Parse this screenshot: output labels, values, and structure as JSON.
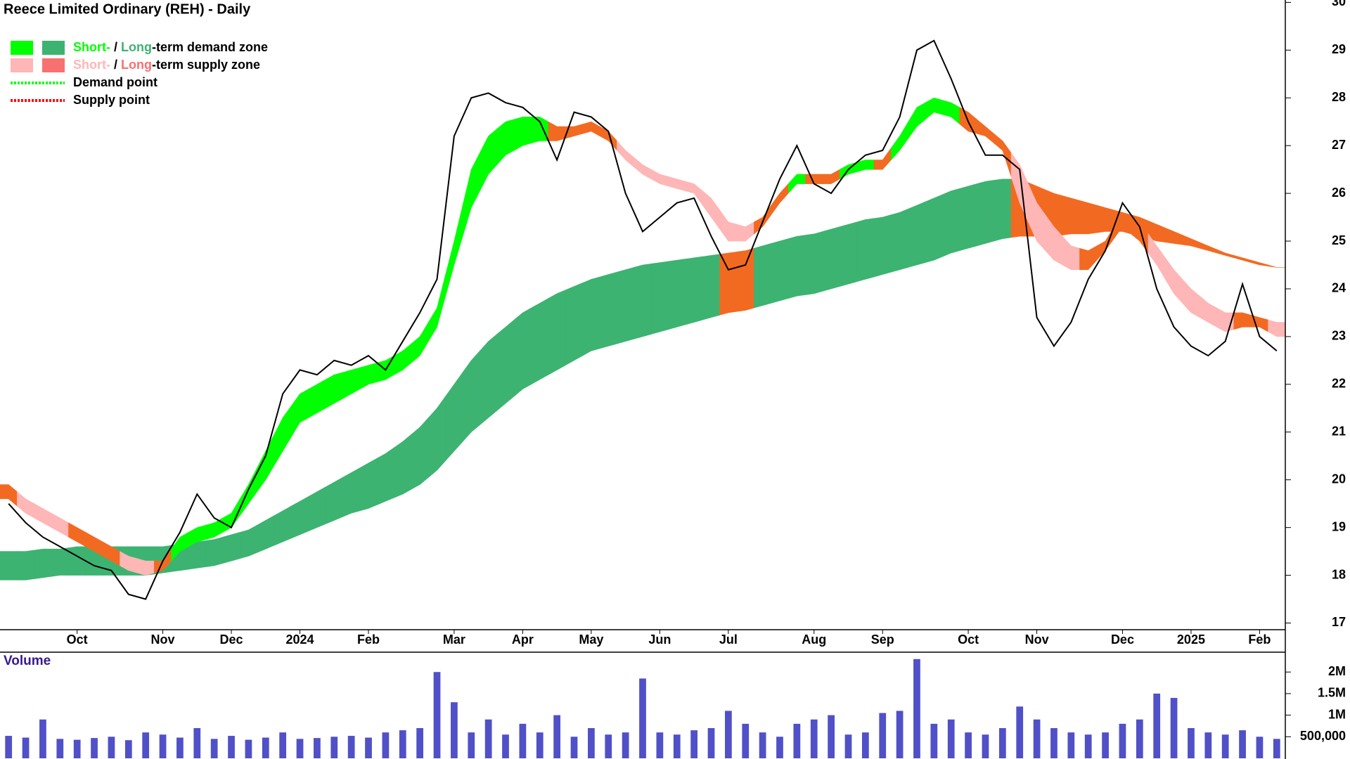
{
  "chart_data": [
    {
      "type": "line",
      "title": "Reece Limited Ordinary (REH) - Daily",
      "categories": [
        null,
        null,
        null,
        null,
        "Oct",
        null,
        null,
        null,
        null,
        "Nov",
        null,
        null,
        null,
        "Dec",
        null,
        null,
        null,
        "2024",
        null,
        null,
        null,
        "Feb",
        null,
        null,
        null,
        null,
        "Mar",
        null,
        null,
        null,
        "Apr",
        null,
        null,
        null,
        "May",
        null,
        null,
        null,
        "Jun",
        null,
        null,
        null,
        "Jul",
        null,
        null,
        null,
        null,
        "Aug",
        null,
        null,
        null,
        "Sep",
        null,
        null,
        null,
        null,
        "Oct",
        null,
        null,
        null,
        "Nov",
        null,
        null,
        null,
        null,
        "Dec",
        null,
        null,
        null,
        "2025",
        null,
        null,
        null,
        "Feb",
        null
      ],
      "series": [
        {
          "color": "#000000",
          "values": [
            19.5,
            19.1,
            18.8,
            18.6,
            18.4,
            18.2,
            18.1,
            17.6,
            17.5,
            18.3,
            18.9,
            19.7,
            19.2,
            19.0,
            19.8,
            20.5,
            21.8,
            22.3,
            22.2,
            22.5,
            22.4,
            22.6,
            22.3,
            22.9,
            23.5,
            24.2,
            27.2,
            28.0,
            28.1,
            27.9,
            27.8,
            27.5,
            26.7,
            27.7,
            27.6,
            27.3,
            26.0,
            25.2,
            25.5,
            25.8,
            25.9,
            25.1,
            24.4,
            24.5,
            25.4,
            26.3,
            27.0,
            26.2,
            26.0,
            26.5,
            26.8,
            26.9,
            27.6,
            29.0,
            29.2,
            28.4,
            27.5,
            26.8,
            26.8,
            26.5,
            23.4,
            22.8,
            23.3,
            24.2,
            24.8,
            25.8,
            25.3,
            24.0,
            23.2,
            22.8,
            22.6,
            22.9,
            24.1,
            23.0,
            22.7
          ]
        }
      ],
      "zones": [
        {
          "lower": [
            17.9,
            17.9,
            17.95,
            18.0,
            18.0,
            18.0,
            18.0,
            18.0,
            18.0,
            18.05,
            18.1,
            18.15,
            18.2,
            18.3,
            18.4,
            18.55,
            18.7,
            18.85,
            19.0,
            19.15,
            19.3,
            19.4,
            19.55,
            19.7,
            19.9,
            20.2,
            20.6,
            21.0,
            21.3,
            21.6,
            21.9,
            22.1,
            22.3,
            22.5,
            22.7,
            22.8,
            22.9,
            23.0,
            23.1,
            23.2,
            23.3,
            23.4,
            23.5,
            23.55,
            23.65,
            23.75,
            23.85,
            23.9,
            24.0,
            24.1,
            24.2,
            24.3,
            24.4,
            24.5,
            24.6,
            24.75,
            24.85,
            24.95,
            25.05,
            25.1,
            25.1,
            25.1,
            25.15,
            25.15,
            25.2,
            25.2,
            25.1,
            25.0,
            24.95,
            24.9,
            24.8,
            24.7,
            24.6,
            24.5,
            24.45
          ],
          "upper": [
            18.5,
            18.5,
            18.55,
            18.55,
            18.6,
            18.6,
            18.6,
            18.6,
            18.6,
            18.6,
            18.65,
            18.7,
            18.75,
            18.85,
            18.95,
            19.15,
            19.35,
            19.55,
            19.75,
            19.95,
            20.15,
            20.35,
            20.55,
            20.8,
            21.1,
            21.5,
            22.0,
            22.5,
            22.9,
            23.2,
            23.5,
            23.7,
            23.9,
            24.05,
            24.2,
            24.3,
            24.4,
            24.5,
            24.55,
            24.6,
            24.65,
            24.7,
            24.75,
            24.8,
            24.9,
            25.0,
            25.1,
            25.15,
            25.25,
            25.35,
            25.45,
            25.5,
            25.6,
            25.75,
            25.9,
            26.05,
            26.15,
            26.25,
            26.3,
            26.3,
            26.15,
            26.0,
            25.9,
            25.8,
            25.7,
            25.6,
            25.5,
            25.35,
            25.2,
            25.05,
            24.9,
            24.75,
            24.65,
            24.55,
            24.45
          ],
          "colors": [
            "#3cb371",
            "#3cb371",
            "#3cb371",
            "#3cb371",
            "#3cb371",
            "#3cb371",
            "#3cb371",
            "#3cb371",
            "#3cb371",
            "#3cb371",
            "#3cb371",
            "#3cb371",
            "#3cb371",
            "#3cb371",
            "#3cb371",
            "#3cb371",
            "#3cb371",
            "#3cb371",
            "#3cb371",
            "#3cb371",
            "#3cb371",
            "#3cb371",
            "#3cb371",
            "#3cb371",
            "#3cb371",
            "#3cb371",
            "#3cb371",
            "#3cb371",
            "#3cb371",
            "#3cb371",
            "#3cb371",
            "#3cb371",
            "#3cb371",
            "#3cb371",
            "#3cb371",
            "#3cb371",
            "#3cb371",
            "#3cb371",
            "#3cb371",
            "#3cb371",
            "#3cb371",
            "#3cb371",
            "#f26a21",
            "#f26a21",
            "#3cb371",
            "#3cb371",
            "#3cb371",
            "#3cb371",
            "#3cb371",
            "#3cb371",
            "#3cb371",
            "#3cb371",
            "#3cb371",
            "#3cb371",
            "#3cb371",
            "#3cb371",
            "#3cb371",
            "#3cb371",
            "#3cb371",
            "#f26a21",
            "#f26a21",
            "#f26a21",
            "#f26a21",
            "#f26a21",
            "#f26a21",
            "#f26a21",
            "#f26a21",
            "#f26a21",
            "#f26a21",
            "#f26a21",
            "#f26a21",
            "#f26a21",
            "#f26a21",
            "#f26a21",
            "#f26a21"
          ]
        },
        {
          "lower": [
            19.6,
            19.3,
            19.1,
            18.9,
            18.7,
            18.5,
            18.3,
            18.1,
            18.0,
            18.1,
            18.5,
            18.7,
            18.8,
            19.0,
            19.5,
            20.0,
            20.6,
            21.2,
            21.4,
            21.6,
            21.8,
            22.0,
            22.1,
            22.3,
            22.6,
            23.2,
            24.5,
            25.7,
            26.4,
            26.8,
            27.0,
            27.1,
            27.1,
            27.2,
            27.3,
            27.1,
            26.7,
            26.4,
            26.2,
            26.1,
            26.0,
            25.5,
            25.0,
            25.0,
            25.3,
            25.8,
            26.2,
            26.2,
            26.2,
            26.4,
            26.5,
            26.5,
            26.9,
            27.4,
            27.7,
            27.6,
            27.3,
            27.2,
            26.9,
            25.8,
            25.0,
            24.6,
            24.4,
            24.4,
            24.8,
            25.3,
            25.0,
            24.5,
            23.9,
            23.5,
            23.3,
            23.1,
            23.2,
            23.2,
            23.0
          ],
          "upper": [
            19.9,
            19.6,
            19.4,
            19.2,
            19.0,
            18.8,
            18.6,
            18.4,
            18.3,
            18.3,
            18.8,
            19.0,
            19.1,
            19.3,
            19.9,
            20.6,
            21.3,
            21.8,
            22.0,
            22.2,
            22.3,
            22.4,
            22.5,
            22.7,
            23.0,
            23.6,
            25.0,
            26.5,
            27.2,
            27.5,
            27.6,
            27.6,
            27.4,
            27.4,
            27.5,
            27.3,
            26.9,
            26.6,
            26.4,
            26.3,
            26.2,
            25.9,
            25.4,
            25.3,
            25.5,
            26.0,
            26.4,
            26.4,
            26.4,
            26.6,
            26.7,
            26.7,
            27.2,
            27.8,
            28.0,
            27.9,
            27.7,
            27.4,
            27.1,
            26.6,
            25.8,
            25.3,
            24.9,
            24.8,
            25.0,
            25.6,
            25.4,
            24.9,
            24.4,
            24.0,
            23.7,
            23.5,
            23.5,
            23.4,
            23.3
          ],
          "colors": [
            "#f26a21",
            "#ffb6b6",
            "#ffb6b6",
            "#ffb6b6",
            "#f26a21",
            "#f26a21",
            "#f26a21",
            "#ffb6b6",
            "#ffb6b6",
            "#f26a21",
            "#00ff00",
            "#00ff00",
            "#00ff00",
            "#00ff00",
            "#00ff00",
            "#00ff00",
            "#00ff00",
            "#00ff00",
            "#00ff00",
            "#00ff00",
            "#00ff00",
            "#00ff00",
            "#00ff00",
            "#00ff00",
            "#00ff00",
            "#00ff00",
            "#00ff00",
            "#00ff00",
            "#00ff00",
            "#00ff00",
            "#00ff00",
            "#00ff00",
            "#f26a21",
            "#f26a21",
            "#f26a21",
            "#f26a21",
            "#ffb6b6",
            "#ffb6b6",
            "#ffb6b6",
            "#ffb6b6",
            "#ffb6b6",
            "#ffb6b6",
            "#ffb6b6",
            "#ffb6b6",
            "#f26a21",
            "#f26a21",
            "#00ff00",
            "#f26a21",
            "#f26a21",
            "#00ff00",
            "#00ff00",
            "#f26a21",
            "#00ff00",
            "#00ff00",
            "#00ff00",
            "#00ff00",
            "#f26a21",
            "#f26a21",
            "#f26a21",
            "#ffb6b6",
            "#ffb6b6",
            "#ffb6b6",
            "#ffb6b6",
            "#f26a21",
            "#f26a21",
            "#f26a21",
            "#f26a21",
            "#ffb6b6",
            "#ffb6b6",
            "#ffb6b6",
            "#ffb6b6",
            "#ffb6b6",
            "#f26a21",
            "#f26a21",
            "#ffb6b6"
          ]
        }
      ],
      "legend": [
        {
          "parts": [
            "Short-",
            " / ",
            "Long",
            "-term demand zone"
          ],
          "colors": [
            "#00ff00",
            "#3cb371"
          ]
        },
        {
          "parts": [
            "Short-",
            " / ",
            "Long",
            "-term supply zone"
          ],
          "colors": [
            "#ffb6b6",
            "#f87171"
          ]
        },
        {
          "parts": [
            "Demand point"
          ],
          "colors": [
            "#00ff00"
          ]
        },
        {
          "parts": [
            "Supply point"
          ],
          "colors": [
            "#ff0000"
          ]
        }
      ],
      "ylim": [
        16.86,
        30.05
      ],
      "yticks": [
        17,
        18,
        19,
        20,
        21,
        22,
        23,
        24,
        25,
        26,
        27,
        28,
        29,
        30
      ]
    },
    {
      "type": "bar",
      "title": "Volume",
      "color": "#5050c8",
      "values": [
        520000,
        480000,
        900000,
        450000,
        430000,
        470000,
        500000,
        420000,
        600000,
        550000,
        480000,
        700000,
        450000,
        520000,
        430000,
        480000,
        600000,
        450000,
        470000,
        500000,
        520000,
        480000,
        600000,
        650000,
        700000,
        2000000,
        1300000,
        600000,
        900000,
        550000,
        800000,
        600000,
        1000000,
        500000,
        700000,
        550000,
        600000,
        1850000,
        600000,
        550000,
        650000,
        700000,
        1100000,
        800000,
        600000,
        500000,
        800000,
        900000,
        1000000,
        550000,
        600000,
        1050000,
        1100000,
        2300000,
        800000,
        900000,
        600000,
        550000,
        700000,
        1200000,
        900000,
        700000,
        600000,
        550000,
        600000,
        800000,
        900000,
        1500000,
        1400000,
        700000,
        600000,
        550000,
        650000,
        500000,
        450000
      ],
      "ylim": [
        0,
        2460000
      ],
      "yticks": [
        {
          "value": 500000,
          "label": "500,000"
        },
        {
          "value": 1000000,
          "label": "1M"
        },
        {
          "value": 1500000,
          "label": "1.5M"
        },
        {
          "value": 2000000,
          "label": "2M"
        }
      ]
    }
  ]
}
